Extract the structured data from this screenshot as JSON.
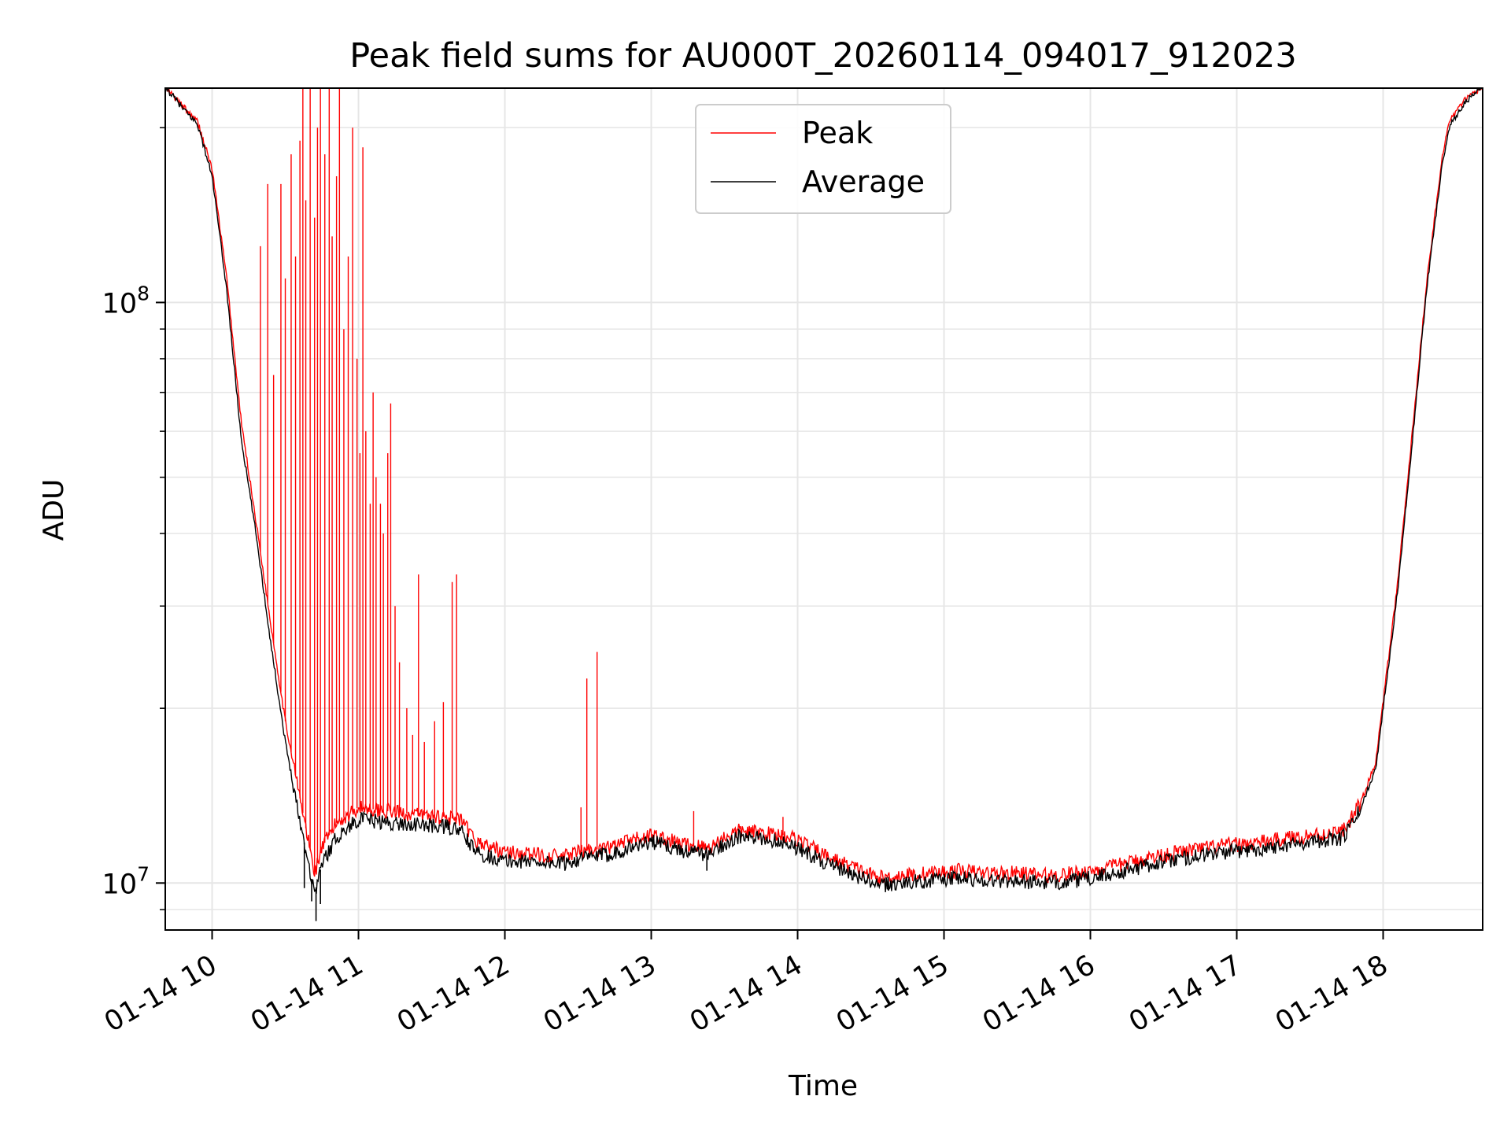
{
  "chart_data": {
    "type": "line",
    "title": "Peak field sums for AU000T_20260114_094017_912023",
    "xlabel": "Time",
    "ylabel": "ADU",
    "yscale": "log",
    "xlim": [
      9.68,
      18.68
    ],
    "ylim": [
      8300000.0,
      234000000.0
    ],
    "grid": true,
    "legend_position": "upper center",
    "x_ticks": [
      {
        "value": 10,
        "label": "01-14 10"
      },
      {
        "value": 11,
        "label": "01-14 11"
      },
      {
        "value": 12,
        "label": "01-14 12"
      },
      {
        "value": 13,
        "label": "01-14 13"
      },
      {
        "value": 14,
        "label": "01-14 14"
      },
      {
        "value": 15,
        "label": "01-14 15"
      },
      {
        "value": 16,
        "label": "01-14 16"
      },
      {
        "value": 17,
        "label": "01-14 17"
      },
      {
        "value": 18,
        "label": "01-14 18"
      }
    ],
    "y_ticks_major": [
      {
        "value": 10000000,
        "base": "10",
        "exp": "7"
      },
      {
        "value": 100000000,
        "base": "10",
        "exp": "8"
      }
    ],
    "y_ticks_minor": [
      9000000,
      20000000,
      30000000,
      40000000,
      50000000,
      60000000,
      70000000,
      80000000,
      90000000,
      200000000
    ],
    "series": [
      {
        "name": "Peak",
        "color": "#ff0000",
        "x": [
          9.68,
          9.82,
          9.9,
          10.0,
          10.1,
          10.2,
          10.3,
          10.4,
          10.5,
          10.6,
          10.7,
          10.75,
          10.85,
          11.0,
          11.2,
          11.4,
          11.6,
          11.7,
          11.8,
          12.0,
          12.2,
          12.4,
          12.5,
          12.7,
          12.9,
          13.0,
          13.2,
          13.4,
          13.5,
          13.6,
          13.75,
          13.9,
          14.0,
          14.2,
          14.4,
          14.55,
          14.7,
          14.9,
          15.1,
          15.3,
          15.5,
          15.7,
          15.9,
          16.1,
          16.3,
          16.5,
          16.7,
          16.9,
          17.1,
          17.3,
          17.5,
          17.7,
          17.75,
          17.85,
          17.95,
          18.0,
          18.1,
          18.2,
          18.3,
          18.4,
          18.45,
          18.55,
          18.68
        ],
        "y": [
          235000000,
          215000000,
          205000000,
          170000000,
          110000000,
          62000000,
          42000000,
          28000000,
          19000000,
          14000000,
          10400000,
          11500000,
          12700000,
          13500000,
          13300000,
          13100000,
          13000000,
          12800000,
          11800000,
          11300000,
          11200000,
          11100000,
          11300000,
          11500000,
          11900000,
          12100000,
          11700000,
          11500000,
          12000000,
          12300000,
          12200000,
          12100000,
          11900000,
          11100000,
          10600000,
          10200000,
          10300000,
          10400000,
          10500000,
          10400000,
          10400000,
          10300000,
          10400000,
          10600000,
          10900000,
          11200000,
          11400000,
          11600000,
          11700000,
          11900000,
          12100000,
          12200000,
          12500000,
          13800000,
          16200000,
          20500000,
          33000000,
          60000000,
          110000000,
          175000000,
          205000000,
          222000000,
          235000000
        ]
      },
      {
        "name": "Average",
        "color": "#000000",
        "x": [
          9.68,
          9.82,
          9.9,
          10.0,
          10.1,
          10.2,
          10.3,
          10.4,
          10.5,
          10.6,
          10.7,
          10.75,
          10.85,
          11.0,
          11.2,
          11.4,
          11.6,
          11.7,
          11.8,
          12.0,
          12.2,
          12.4,
          12.5,
          12.7,
          12.9,
          13.0,
          13.2,
          13.4,
          13.5,
          13.6,
          13.75,
          13.9,
          14.0,
          14.2,
          14.4,
          14.55,
          14.7,
          14.9,
          15.1,
          15.3,
          15.5,
          15.7,
          15.9,
          16.1,
          16.3,
          16.5,
          16.7,
          16.9,
          17.1,
          17.3,
          17.5,
          17.7,
          17.75,
          17.85,
          17.95,
          18.0,
          18.1,
          18.2,
          18.3,
          18.4,
          18.45,
          18.55,
          18.68
        ],
        "y": [
          235000000,
          213000000,
          203000000,
          165000000,
          105000000,
          58000000,
          40000000,
          26000000,
          17500000,
          12800000,
          9600000,
          10800000,
          12000000,
          12900000,
          12700000,
          12600000,
          12500000,
          12300000,
          11300000,
          10900000,
          10900000,
          10800000,
          11000000,
          11200000,
          11600000,
          11800000,
          11400000,
          11200000,
          11700000,
          12000000,
          11900000,
          11800000,
          11500000,
          10800000,
          10300000,
          9900000,
          10000000,
          10100000,
          10200000,
          10100000,
          10100000,
          10000000,
          10100000,
          10300000,
          10600000,
          10900000,
          11100000,
          11300000,
          11400000,
          11600000,
          11800000,
          11900000,
          12200000,
          13500000,
          15800000,
          20000000,
          32000000,
          58000000,
          107000000,
          170000000,
          200000000,
          220000000,
          235000000
        ]
      }
    ],
    "peak_spikes": [
      {
        "x": 10.33,
        "y": 125000000
      },
      {
        "x": 10.38,
        "y": 160000000
      },
      {
        "x": 10.42,
        "y": 75000000
      },
      {
        "x": 10.47,
        "y": 160000000
      },
      {
        "x": 10.5,
        "y": 110000000
      },
      {
        "x": 10.54,
        "y": 180000000
      },
      {
        "x": 10.57,
        "y": 120000000
      },
      {
        "x": 10.6,
        "y": 190000000
      },
      {
        "x": 10.62,
        "y": 234000000
      },
      {
        "x": 10.64,
        "y": 150000000
      },
      {
        "x": 10.67,
        "y": 234000000
      },
      {
        "x": 10.7,
        "y": 140000000
      },
      {
        "x": 10.72,
        "y": 200000000
      },
      {
        "x": 10.74,
        "y": 234000000
      },
      {
        "x": 10.77,
        "y": 180000000
      },
      {
        "x": 10.8,
        "y": 234000000
      },
      {
        "x": 10.82,
        "y": 130000000
      },
      {
        "x": 10.85,
        "y": 165000000
      },
      {
        "x": 10.87,
        "y": 234000000
      },
      {
        "x": 10.9,
        "y": 90000000
      },
      {
        "x": 10.93,
        "y": 120000000
      },
      {
        "x": 10.96,
        "y": 200000000
      },
      {
        "x": 10.99,
        "y": 80000000
      },
      {
        "x": 11.01,
        "y": 55000000
      },
      {
        "x": 11.03,
        "y": 185000000
      },
      {
        "x": 11.05,
        "y": 60000000
      },
      {
        "x": 11.08,
        "y": 45000000
      },
      {
        "x": 11.1,
        "y": 70000000
      },
      {
        "x": 11.12,
        "y": 50000000
      },
      {
        "x": 11.15,
        "y": 45000000
      },
      {
        "x": 11.17,
        "y": 40000000
      },
      {
        "x": 11.2,
        "y": 55000000
      },
      {
        "x": 11.22,
        "y": 67000000
      },
      {
        "x": 11.25,
        "y": 30000000
      },
      {
        "x": 11.28,
        "y": 24000000
      },
      {
        "x": 11.33,
        "y": 20000000
      },
      {
        "x": 11.37,
        "y": 18000000
      },
      {
        "x": 11.41,
        "y": 34000000
      },
      {
        "x": 11.45,
        "y": 17500000
      },
      {
        "x": 11.52,
        "y": 19000000
      },
      {
        "x": 11.58,
        "y": 20500000
      },
      {
        "x": 11.64,
        "y": 33000000
      },
      {
        "x": 11.67,
        "y": 34000000
      },
      {
        "x": 12.52,
        "y": 13500000
      },
      {
        "x": 12.56,
        "y": 22500000
      },
      {
        "x": 12.63,
        "y": 25000000
      },
      {
        "x": 13.29,
        "y": 13300000
      },
      {
        "x": 13.9,
        "y": 13000000
      }
    ],
    "dips": [
      {
        "x": 10.63,
        "y": 9800000
      },
      {
        "x": 10.68,
        "y": 9300000
      },
      {
        "x": 10.71,
        "y": 8600000
      },
      {
        "x": 10.74,
        "y": 9200000
      },
      {
        "x": 13.38,
        "y": 10500000
      },
      {
        "x": 14.62,
        "y": 9700000
      }
    ]
  },
  "legend": {
    "peak_label": "Peak",
    "average_label": "Average"
  }
}
